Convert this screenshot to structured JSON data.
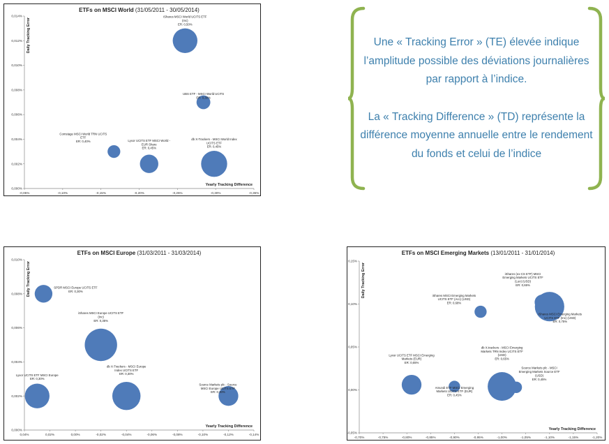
{
  "info_box": {
    "bracket_color": "#8fb350",
    "text_color": "#3e80ad",
    "paragraph_1": "Une « Tracking Error » (TE) élevée indique l’amplitude possible des déviations journalières par rapport à l’indice.",
    "paragraph_2": "La « Tracking Difference » (TD) représente la différence moyenne annuelle entre le rendement du fonds et celui de l’indice"
  },
  "chart_data": [
    {
      "type": "scatter",
      "title": "ETFs on MSCI World",
      "subtitle": "(31/05/2011 - 30/05/2014)",
      "xlabel": "Yearly Tracking Difference",
      "ylabel": "Daily Tracking Error",
      "x_ticks": [
        "-0,05%",
        "-0,10%",
        "-0,15%",
        "-0,20%",
        "-0,25%",
        "-0,30%",
        "-0,35%"
      ],
      "y_ticks": [
        "0,000%",
        "0,002%",
        "0,004%",
        "0,006%",
        "0,008%",
        "0,010%",
        "0,012%",
        "0,014%"
      ],
      "xlim": [
        -0.05,
        -0.35
      ],
      "ylim": [
        0,
        0.014
      ],
      "marker_color": "#4f7bb9",
      "points": [
        {
          "label": [
            "iShares MSCI World UCITS ETF",
            "(Inc)",
            "ER: 0,50%"
          ],
          "x": -0.26,
          "y": 0.012,
          "size": 2.1
        },
        {
          "label": [
            "UBS ETF - MSCI World UCITS",
            "ER: 0,30%"
          ],
          "x": -0.284,
          "y": 0.007,
          "size": 0.45
        },
        {
          "label": [
            "Comstage MSCI World TRN UCITS",
            "ETF",
            "ER: 0,40%"
          ],
          "x": -0.167,
          "y": 0.003,
          "size": 0.35
        },
        {
          "label": [
            "Lyxor UCITS ETF MSCI World -",
            "EUR Share",
            "ER: 0,45%"
          ],
          "x": -0.213,
          "y": 0.002,
          "size": 1.0
        },
        {
          "label": [
            "db X-Trackers - MSCI World Index",
            "UCITS ETF",
            "ER: 0,45%"
          ],
          "x": -0.298,
          "y": 0.002,
          "size": 2.4
        }
      ]
    },
    {
      "type": "scatter",
      "title": "ETFs on MSCI Europe",
      "subtitle": "(31/03/2011 - 31/03/2014)",
      "xlabel": "Yearly Tracking Difference",
      "ylabel": "Daily Tracking Error",
      "x_ticks": [
        "0,04%",
        "0,02%",
        "0,00%",
        "-0,02%",
        "-0,04%",
        "-0,06%",
        "-0,08%",
        "-0,10%",
        "-0,12%",
        "-0,14%"
      ],
      "y_ticks": [
        "0,000%",
        "0,002%",
        "0,004%",
        "0,006%",
        "0,008%",
        "0,010%"
      ],
      "xlim": [
        0.04,
        -0.14
      ],
      "ylim": [
        0,
        0.01
      ],
      "marker_color": "#4f7bb9",
      "points": [
        {
          "label": [
            "SPDR MSCI Europe UCITS ETF",
            "ER: 0,30%"
          ],
          "x": 0.025,
          "y": 0.008,
          "size": 0.9
        },
        {
          "label": [
            "iShares MSCI Europe UCITS ETF",
            "(Inc)",
            "ER: 0,35%"
          ],
          "x": -0.02,
          "y": 0.005,
          "size": 4.0
        },
        {
          "label": [
            "Lyxor UCITS ETF MSCI Europe",
            "ER: 0,30%"
          ],
          "x": 0.03,
          "y": 0.002,
          "size": 2.1
        },
        {
          "label": [
            "db X-Trackers - MSCI Europe",
            "Index UCITS ETF",
            "ER: 0,30%"
          ],
          "x": -0.04,
          "y": 0.002,
          "size": 2.9
        },
        {
          "label": [
            "Source Markets plc - Source",
            "MSCI Europe UCITS ETF",
            "ER: 0,30%"
          ],
          "x": -0.12,
          "y": 0.002,
          "size": 1.2
        }
      ]
    },
    {
      "type": "scatter",
      "title": "ETFs on MSCI Emerging Markets",
      "subtitle": "(13/01/2011 - 31/01/2014)",
      "xlabel": "Yearly Tracking Difference",
      "ylabel": "Daily Tracking Error",
      "x_ticks": [
        "-0,70%",
        "-0,75%",
        "-0,80%",
        "-0,85%",
        "-0,90%",
        "-0,95%",
        "-1,00%",
        "-1,05%",
        "-1,10%",
        "-1,15%",
        "-1,20%"
      ],
      "y_ticks": [
        "-0,05%",
        "0,00%",
        "0,05%",
        "0,10%",
        "0,15%"
      ],
      "xlim": [
        -0.7,
        -1.2
      ],
      "ylim": [
        -0.05,
        0.15
      ],
      "marker_color": "#4f7bb9",
      "points": [
        {
          "label": [
            "iShares (ex-CS ETF) MSCI",
            "Emerging Markets UCITS ETF",
            "(Lux) (USD)",
            "ER: 0,65%"
          ],
          "x": -1.085,
          "y": 0.102,
          "size": 0.7,
          "outline": true
        },
        {
          "label": [
            "iShares MSCI Emerging Markets",
            "UCITS ETF (Acc) (USD)",
            "ER: 0,68%"
          ],
          "x": -0.955,
          "y": 0.091,
          "size": 0.3
        },
        {
          "label": [
            "iShares MSCI Emerging Markets",
            "UCITS ETF (Inc) (USD)",
            "ER: 0,75%"
          ],
          "x": -1.1,
          "y": 0.097,
          "size": 3.2
        },
        {
          "label": [
            "Lyxor UCITS ETF MSCI Emerging",
            "Markets (EUR)",
            "ER: 0,65%"
          ],
          "x": -0.81,
          "y": 0.006,
          "size": 1.2
        },
        {
          "label": [
            "Amundi ETF MSCI Emerging",
            "Markets UCITS ETF (EUR)",
            "ER: 0,45%"
          ],
          "x": -0.9,
          "y": 0.004,
          "size": 0.25
        },
        {
          "label": [
            "db X-trackers - MSCI Emerging",
            "Markets TRN Index UCITS ETF",
            "(USD)",
            "ER: 0,65%"
          ],
          "x": -1.0,
          "y": 0.004,
          "size": 3.0
        },
        {
          "label": [
            "Source Markets plc - MSCI",
            "Emerging Markets Source ETF",
            "(USD)",
            "ER: 0,45%"
          ],
          "x": -1.03,
          "y": 0.003,
          "size": 0.25
        }
      ]
    }
  ]
}
